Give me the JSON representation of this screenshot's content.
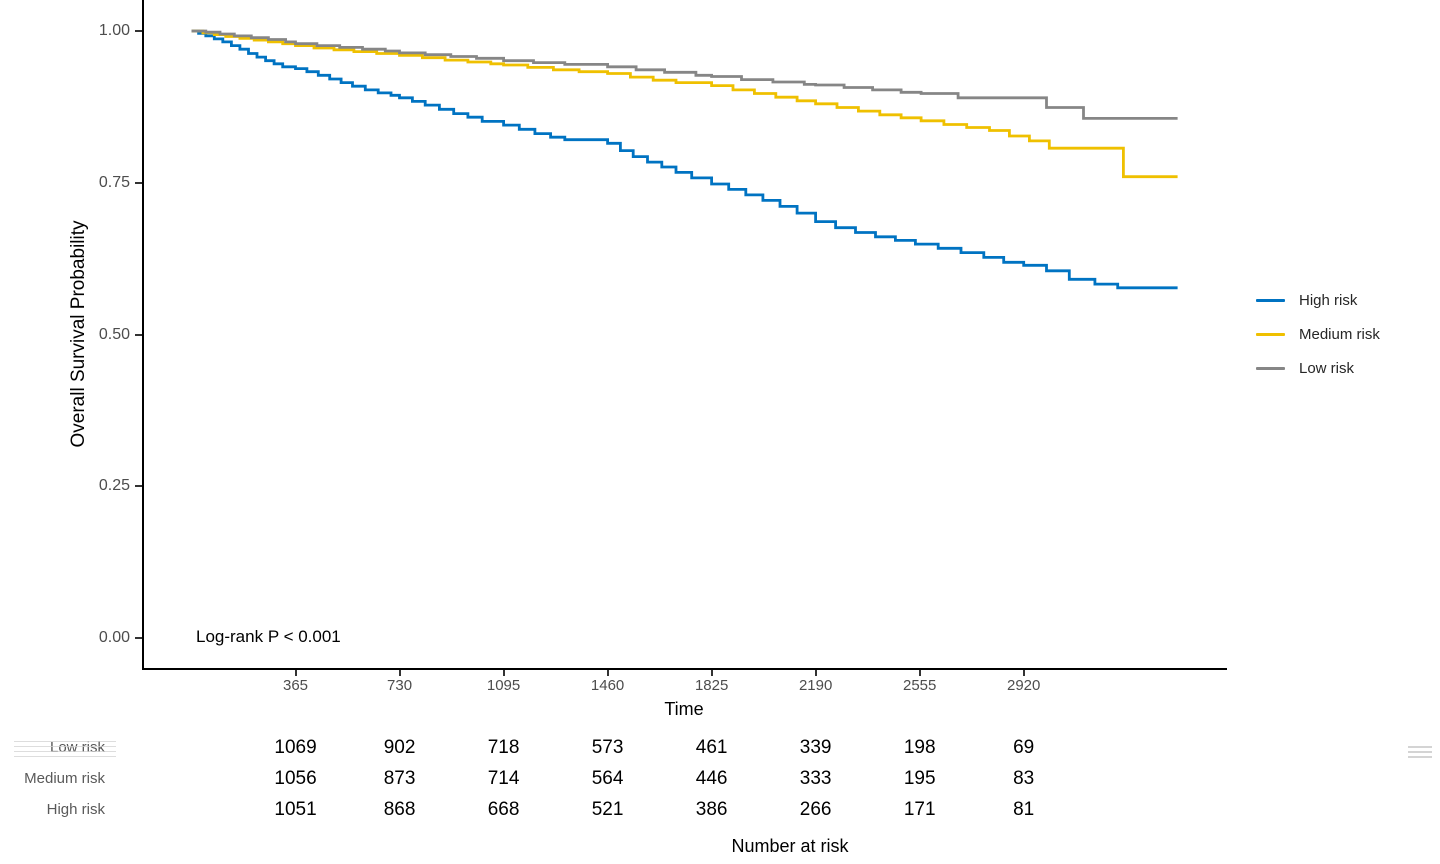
{
  "chart_data": {
    "type": "line",
    "subtype": "kaplan-meier-step",
    "title": "",
    "xlabel": "Time",
    "ylabel": "Overall Survival Probability",
    "annotation": "Log-rank P < 0.001",
    "xlim": [
      0,
      3640
    ],
    "ylim": [
      0,
      1.0
    ],
    "x_ticks": [
      365,
      730,
      1095,
      1460,
      1825,
      2190,
      2555,
      2920
    ],
    "y_ticks": [
      {
        "value": 0.0,
        "label": "0.00"
      },
      {
        "value": 0.25,
        "label": "0.25"
      },
      {
        "value": 0.5,
        "label": "0.50"
      },
      {
        "value": 0.75,
        "label": "0.75"
      },
      {
        "value": 1.0,
        "label": "1.00"
      }
    ],
    "grid": false,
    "legend_position": "right",
    "series": [
      {
        "name": "High risk",
        "color": "#0073C2",
        "points": [
          [
            0,
            1.0
          ],
          [
            25,
            0.996
          ],
          [
            50,
            0.992
          ],
          [
            80,
            0.987
          ],
          [
            110,
            0.982
          ],
          [
            140,
            0.976
          ],
          [
            170,
            0.97
          ],
          [
            200,
            0.963
          ],
          [
            230,
            0.957
          ],
          [
            260,
            0.951
          ],
          [
            290,
            0.946
          ],
          [
            320,
            0.941
          ],
          [
            365,
            0.938
          ],
          [
            405,
            0.933
          ],
          [
            445,
            0.927
          ],
          [
            485,
            0.921
          ],
          [
            525,
            0.915
          ],
          [
            565,
            0.909
          ],
          [
            610,
            0.903
          ],
          [
            655,
            0.898
          ],
          [
            700,
            0.894
          ],
          [
            730,
            0.89
          ],
          [
            775,
            0.884
          ],
          [
            820,
            0.878
          ],
          [
            870,
            0.871
          ],
          [
            920,
            0.864
          ],
          [
            970,
            0.858
          ],
          [
            1020,
            0.851
          ],
          [
            1095,
            0.845
          ],
          [
            1150,
            0.838
          ],
          [
            1205,
            0.831
          ],
          [
            1260,
            0.825
          ],
          [
            1310,
            0.821
          ],
          [
            1460,
            0.815
          ],
          [
            1505,
            0.803
          ],
          [
            1550,
            0.793
          ],
          [
            1600,
            0.784
          ],
          [
            1650,
            0.776
          ],
          [
            1700,
            0.767
          ],
          [
            1755,
            0.758
          ],
          [
            1825,
            0.748
          ],
          [
            1885,
            0.739
          ],
          [
            1945,
            0.73
          ],
          [
            2005,
            0.721
          ],
          [
            2065,
            0.711
          ],
          [
            2125,
            0.7
          ],
          [
            2190,
            0.686
          ],
          [
            2260,
            0.676
          ],
          [
            2330,
            0.668
          ],
          [
            2400,
            0.661
          ],
          [
            2470,
            0.655
          ],
          [
            2540,
            0.649
          ],
          [
            2620,
            0.642
          ],
          [
            2700,
            0.635
          ],
          [
            2780,
            0.627
          ],
          [
            2850,
            0.619
          ],
          [
            2920,
            0.614
          ],
          [
            3000,
            0.605
          ],
          [
            3080,
            0.591
          ],
          [
            3170,
            0.583
          ],
          [
            3250,
            0.577
          ],
          [
            3460,
            0.577
          ]
        ]
      },
      {
        "name": "Medium risk",
        "color": "#EFC000",
        "points": [
          [
            0,
            1.0
          ],
          [
            40,
            0.997
          ],
          [
            80,
            0.994
          ],
          [
            120,
            0.991
          ],
          [
            170,
            0.988
          ],
          [
            220,
            0.985
          ],
          [
            270,
            0.982
          ],
          [
            320,
            0.979
          ],
          [
            365,
            0.976
          ],
          [
            430,
            0.972
          ],
          [
            500,
            0.969
          ],
          [
            570,
            0.966
          ],
          [
            650,
            0.963
          ],
          [
            730,
            0.96
          ],
          [
            810,
            0.956
          ],
          [
            890,
            0.952
          ],
          [
            970,
            0.949
          ],
          [
            1050,
            0.946
          ],
          [
            1095,
            0.944
          ],
          [
            1180,
            0.94
          ],
          [
            1270,
            0.936
          ],
          [
            1360,
            0.933
          ],
          [
            1460,
            0.93
          ],
          [
            1540,
            0.924
          ],
          [
            1620,
            0.919
          ],
          [
            1700,
            0.915
          ],
          [
            1825,
            0.91
          ],
          [
            1900,
            0.903
          ],
          [
            1975,
            0.897
          ],
          [
            2050,
            0.891
          ],
          [
            2125,
            0.885
          ],
          [
            2190,
            0.88
          ],
          [
            2265,
            0.874
          ],
          [
            2340,
            0.868
          ],
          [
            2415,
            0.862
          ],
          [
            2490,
            0.857
          ],
          [
            2560,
            0.852
          ],
          [
            2640,
            0.846
          ],
          [
            2720,
            0.841
          ],
          [
            2800,
            0.836
          ],
          [
            2870,
            0.827
          ],
          [
            2940,
            0.819
          ],
          [
            3010,
            0.807
          ],
          [
            3270,
            0.76
          ],
          [
            3460,
            0.76
          ]
        ]
      },
      {
        "name": "Low risk",
        "color": "#868686",
        "points": [
          [
            0,
            1.0
          ],
          [
            50,
            0.998
          ],
          [
            100,
            0.995
          ],
          [
            150,
            0.992
          ],
          [
            210,
            0.989
          ],
          [
            270,
            0.986
          ],
          [
            330,
            0.982
          ],
          [
            365,
            0.979
          ],
          [
            440,
            0.976
          ],
          [
            520,
            0.973
          ],
          [
            600,
            0.97
          ],
          [
            680,
            0.967
          ],
          [
            730,
            0.964
          ],
          [
            820,
            0.961
          ],
          [
            910,
            0.958
          ],
          [
            1000,
            0.955
          ],
          [
            1095,
            0.951
          ],
          [
            1200,
            0.948
          ],
          [
            1310,
            0.945
          ],
          [
            1460,
            0.941
          ],
          [
            1560,
            0.936
          ],
          [
            1660,
            0.932
          ],
          [
            1770,
            0.927
          ],
          [
            1825,
            0.925
          ],
          [
            1930,
            0.92
          ],
          [
            2040,
            0.916
          ],
          [
            2150,
            0.912
          ],
          [
            2190,
            0.911
          ],
          [
            2290,
            0.907
          ],
          [
            2390,
            0.903
          ],
          [
            2490,
            0.899
          ],
          [
            2560,
            0.897
          ],
          [
            2690,
            0.89
          ],
          [
            3000,
            0.874
          ],
          [
            3130,
            0.856
          ],
          [
            3460,
            0.856
          ]
        ]
      }
    ],
    "risk_table": {
      "title": "Number at risk",
      "times": [
        365,
        730,
        1095,
        1460,
        1825,
        2190,
        2555,
        2920
      ],
      "rows": [
        {
          "name": "Low risk",
          "counts": [
            1069,
            902,
            718,
            573,
            461,
            339,
            198,
            69
          ]
        },
        {
          "name": "Medium risk",
          "counts": [
            1056,
            873,
            714,
            564,
            446,
            333,
            195,
            83
          ]
        },
        {
          "name": "High risk",
          "counts": [
            1051,
            868,
            668,
            521,
            386,
            266,
            171,
            81
          ]
        }
      ]
    }
  }
}
